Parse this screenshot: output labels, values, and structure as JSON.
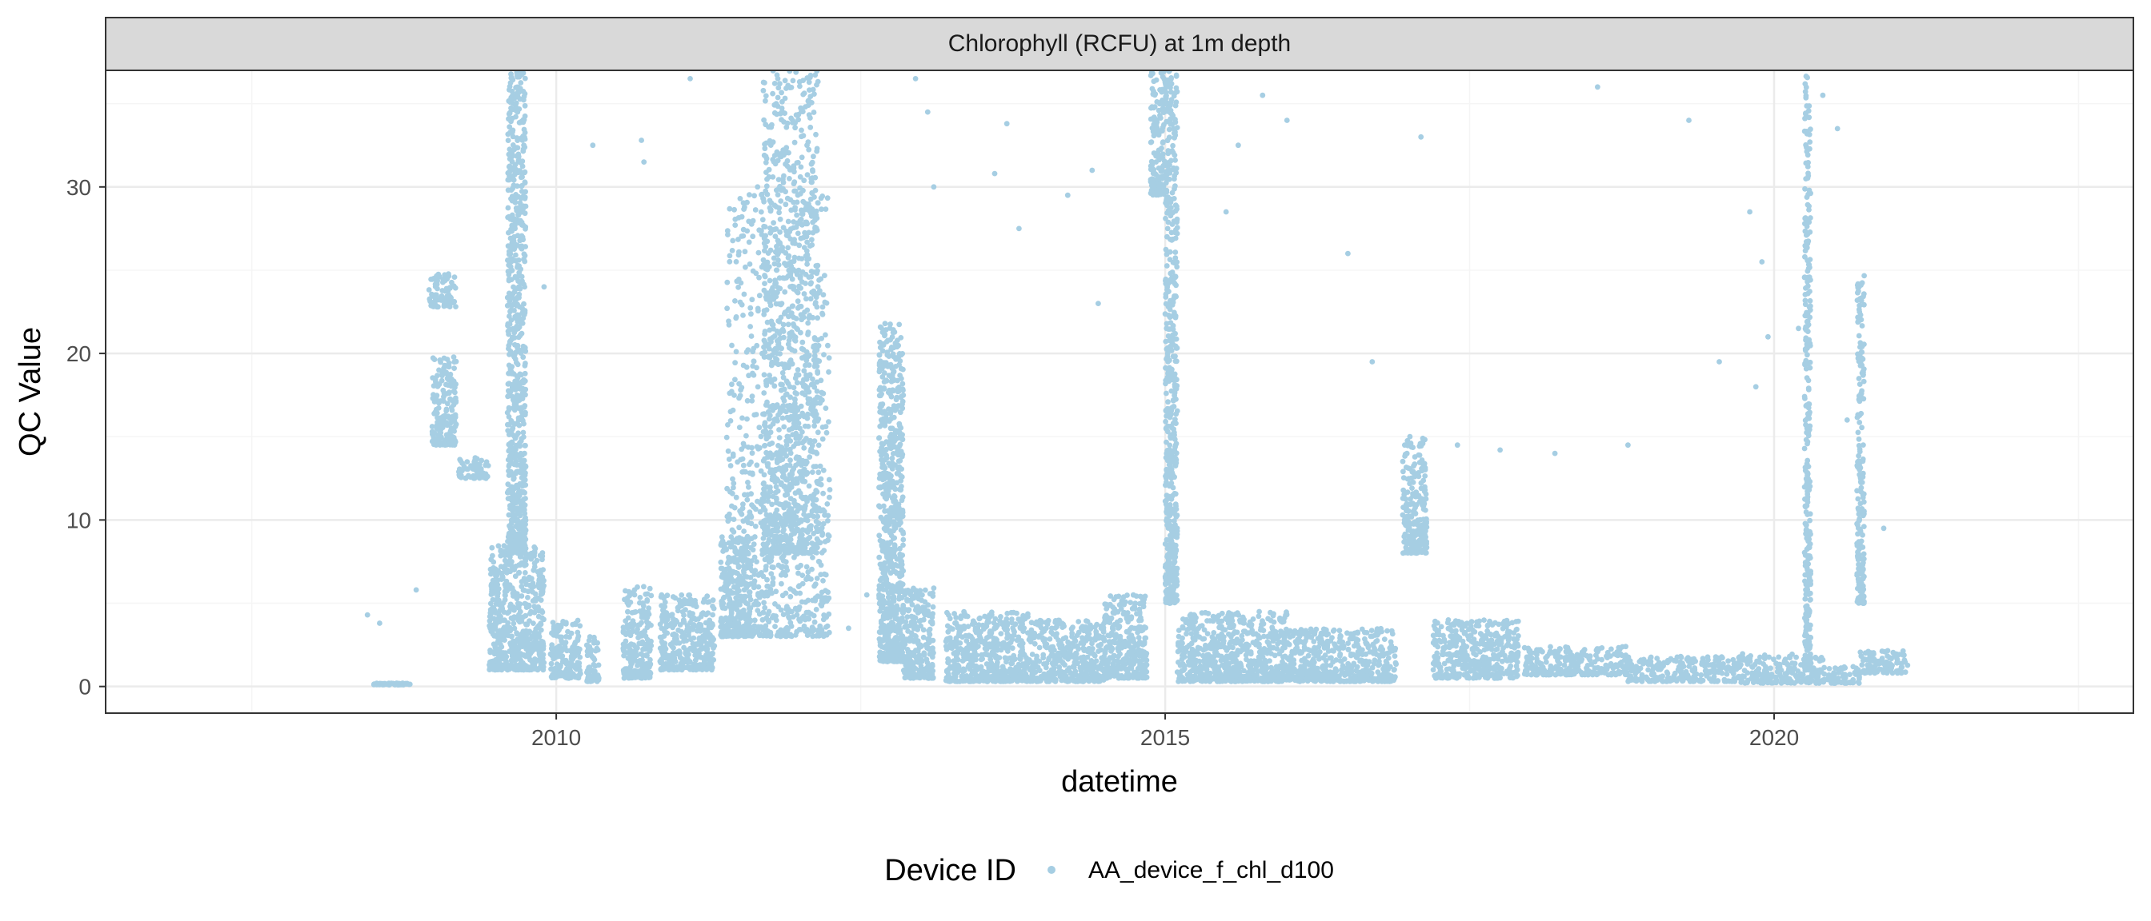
{
  "colors": {
    "points": "#a6cee3",
    "strip_bg": "#d9d9d9",
    "grid_major": "#ebebeb",
    "grid_minor": "#f5f5f5",
    "panel_border": "#333333"
  },
  "chart_data": {
    "type": "scatter",
    "strip_title": "Chlorophyll (RCFU) at 1m depth",
    "xlabel": "datetime",
    "ylabel": "QC Value",
    "xlim": [
      2006.3,
      2022.95
    ],
    "ylim": [
      -1.6,
      37.0
    ],
    "x_ticks": [
      2010,
      2015,
      2020
    ],
    "x_tick_labels": [
      "2010",
      "2015",
      "2020"
    ],
    "y_ticks": [
      0,
      10,
      20,
      30
    ],
    "y_tick_labels": [
      "0",
      "10",
      "20",
      "30"
    ],
    "grid": true,
    "legend": {
      "title": "Device ID",
      "position": "bottom",
      "entries": [
        "AA_device_f_chl_d100"
      ]
    },
    "series": [
      {
        "name": "AA_device_f_chl_d100",
        "segments": [
          [
            2008.5,
            2008.8,
            0.1,
            0.2
          ],
          [
            2008.95,
            2009.18,
            22.8,
            24.8
          ],
          [
            2008.98,
            2009.18,
            14.5,
            19.8
          ],
          [
            2009.2,
            2009.45,
            12.5,
            13.8
          ],
          [
            2009.45,
            2009.9,
            1.0,
            8.5
          ],
          [
            2009.6,
            2009.75,
            8.0,
            37.0
          ],
          [
            2009.95,
            2010.2,
            0.5,
            4.0
          ],
          [
            2010.25,
            2010.35,
            0.3,
            3.0
          ],
          [
            2010.55,
            2010.78,
            0.5,
            6.0
          ],
          [
            2010.85,
            2011.3,
            1.0,
            5.5
          ],
          [
            2011.35,
            2011.6,
            3.0,
            9.0
          ],
          [
            2011.4,
            2012.25,
            3.0,
            30.0
          ],
          [
            2011.7,
            2012.15,
            8.0,
            37.0
          ],
          [
            2012.65,
            2012.85,
            1.5,
            22.0
          ],
          [
            2012.85,
            2013.1,
            0.5,
            6.0
          ],
          [
            2013.2,
            2013.9,
            0.3,
            4.5
          ],
          [
            2013.9,
            2014.5,
            0.3,
            4.0
          ],
          [
            2014.5,
            2014.85,
            0.5,
            5.5
          ],
          [
            2014.88,
            2015.0,
            29.5,
            37.0
          ],
          [
            2015.0,
            2015.1,
            5.0,
            37.0
          ],
          [
            2015.1,
            2016.0,
            0.3,
            4.5
          ],
          [
            2016.0,
            2016.9,
            0.3,
            3.5
          ],
          [
            2016.95,
            2017.15,
            8.0,
            15.0
          ],
          [
            2017.2,
            2017.9,
            0.5,
            4.0
          ],
          [
            2017.95,
            2018.8,
            0.7,
            2.4
          ],
          [
            2018.8,
            2019.7,
            0.3,
            1.8
          ],
          [
            2019.7,
            2020.4,
            0.2,
            2.0
          ],
          [
            2020.25,
            2020.3,
            1.0,
            37.0
          ],
          [
            2020.4,
            2020.7,
            0.2,
            1.2
          ],
          [
            2020.7,
            2021.1,
            0.8,
            2.2
          ],
          [
            2020.68,
            2020.74,
            5.0,
            25.0
          ]
        ],
        "outliers": [
          [
            2008.45,
            4.3
          ],
          [
            2008.55,
            3.8
          ],
          [
            2008.85,
            5.8
          ],
          [
            2009.9,
            24.0
          ],
          [
            2010.3,
            32.5
          ],
          [
            2010.7,
            32.8
          ],
          [
            2010.72,
            31.5
          ],
          [
            2011.1,
            36.5
          ],
          [
            2012.4,
            3.5
          ],
          [
            2012.55,
            5.5
          ],
          [
            2012.95,
            36.5
          ],
          [
            2013.05,
            34.5
          ],
          [
            2013.1,
            30.0
          ],
          [
            2013.6,
            30.8
          ],
          [
            2013.7,
            33.8
          ],
          [
            2013.8,
            27.5
          ],
          [
            2014.2,
            29.5
          ],
          [
            2014.4,
            31.0
          ],
          [
            2014.45,
            23.0
          ],
          [
            2015.5,
            28.5
          ],
          [
            2015.6,
            32.5
          ],
          [
            2015.8,
            35.5
          ],
          [
            2016.0,
            34.0
          ],
          [
            2016.5,
            26.0
          ],
          [
            2016.7,
            19.5
          ],
          [
            2017.1,
            33.0
          ],
          [
            2017.4,
            14.5
          ],
          [
            2017.75,
            14.2
          ],
          [
            2018.2,
            14.0
          ],
          [
            2018.55,
            36.0
          ],
          [
            2018.8,
            14.5
          ],
          [
            2019.3,
            34.0
          ],
          [
            2019.55,
            19.5
          ],
          [
            2019.8,
            28.5
          ],
          [
            2019.85,
            18.0
          ],
          [
            2019.9,
            25.5
          ],
          [
            2019.95,
            21.0
          ],
          [
            2020.2,
            21.5
          ],
          [
            2020.4,
            35.5
          ],
          [
            2020.52,
            33.5
          ],
          [
            2020.6,
            16.0
          ],
          [
            2020.9,
            9.5
          ]
        ]
      }
    ]
  }
}
